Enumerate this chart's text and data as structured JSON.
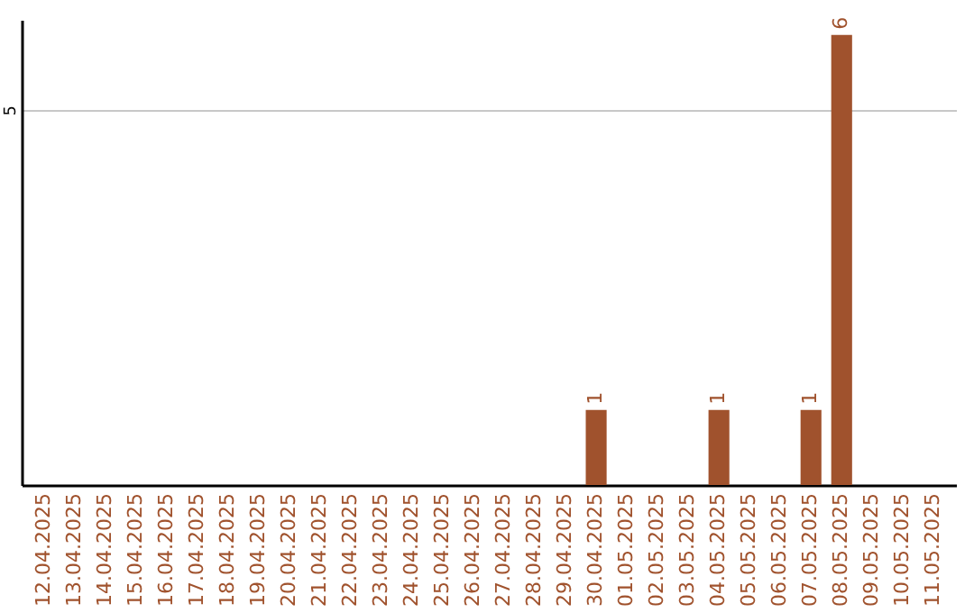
{
  "chart_data": {
    "type": "bar",
    "categories": [
      "12.04.2025",
      "13.04.2025",
      "14.04.2025",
      "15.04.2025",
      "16.04.2025",
      "17.04.2025",
      "18.04.2025",
      "19.04.2025",
      "20.04.2025",
      "21.04.2025",
      "22.04.2025",
      "23.04.2025",
      "24.04.2025",
      "25.04.2025",
      "26.04.2025",
      "27.04.2025",
      "28.04.2025",
      "29.04.2025",
      "30.04.2025",
      "01.05.2025",
      "02.05.2025",
      "03.05.2025",
      "04.05.2025",
      "05.05.2025",
      "06.05.2025",
      "07.05.2025",
      "08.05.2025",
      "09.05.2025",
      "10.05.2025",
      "11.05.2025"
    ],
    "values": [
      null,
      null,
      null,
      null,
      null,
      null,
      null,
      null,
      null,
      null,
      null,
      null,
      null,
      null,
      null,
      null,
      null,
      null,
      1,
      null,
      null,
      null,
      1,
      null,
      null,
      1,
      6,
      null,
      null,
      null
    ],
    "color": "#a0522d",
    "ylim": [
      0,
      6.2
    ],
    "yticks": [
      5
    ],
    "grid": "y",
    "data_labels": true
  }
}
